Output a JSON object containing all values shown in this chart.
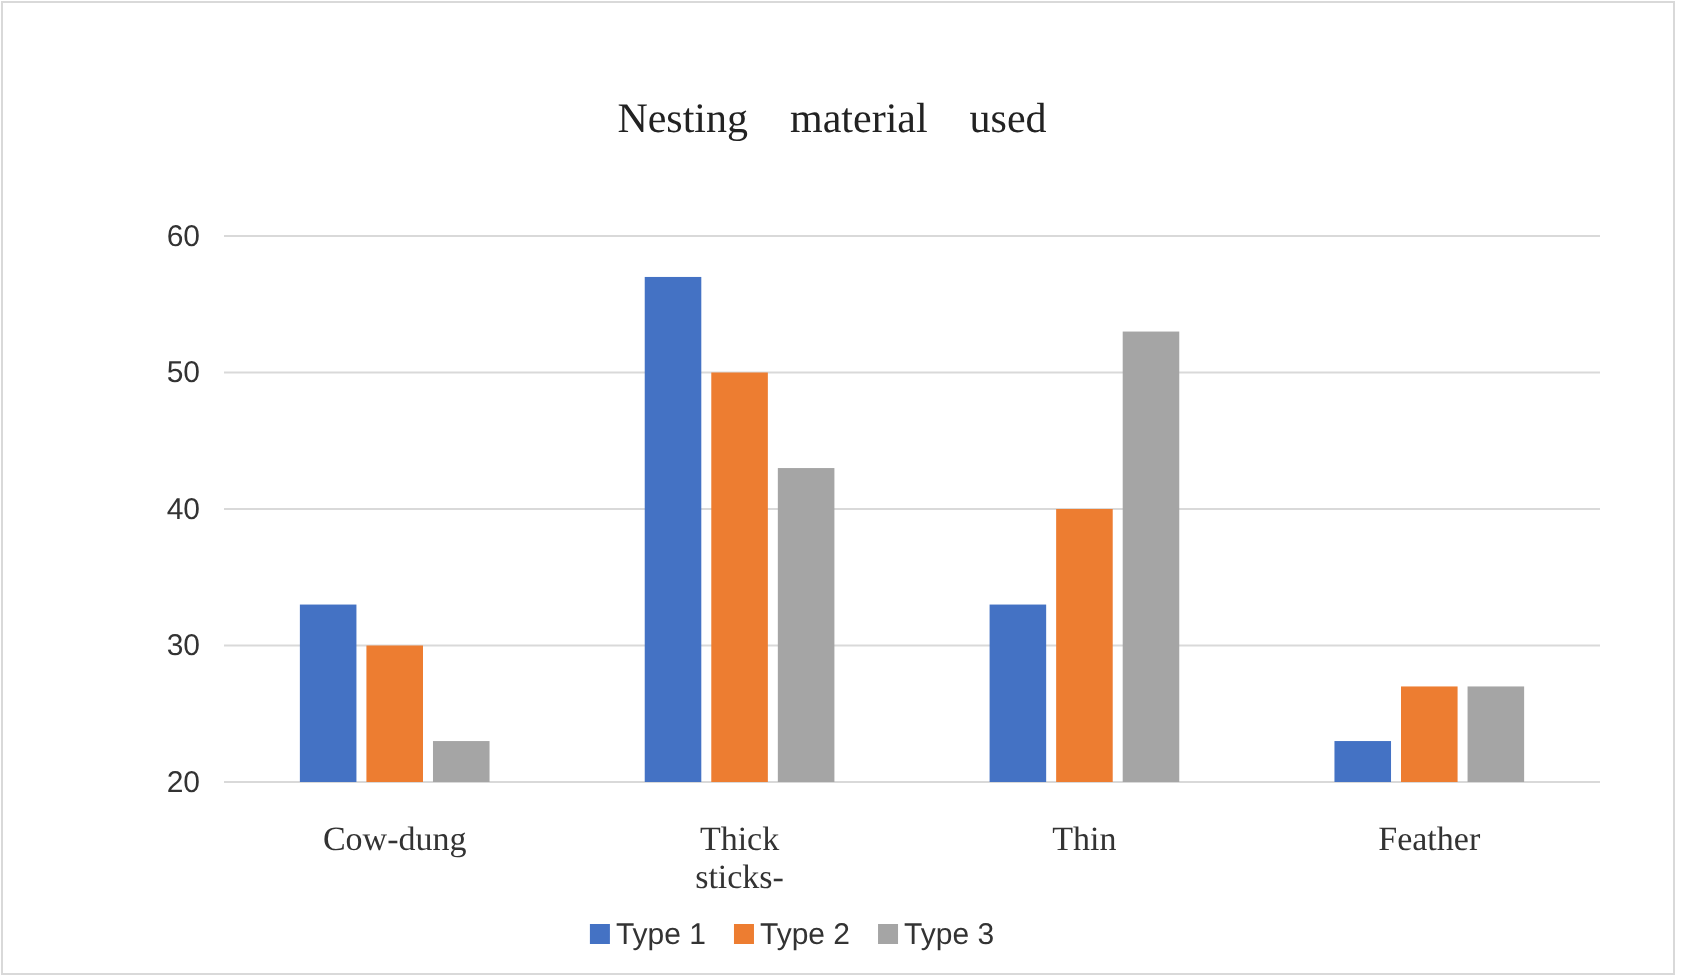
{
  "chart_data": {
    "type": "bar",
    "title": "Nesting    material    used",
    "categories": [
      "Cow-dung",
      "Thick sticks-",
      "Thin",
      "Feather"
    ],
    "series": [
      {
        "name": "Type 1",
        "color": "#4472c4",
        "values": [
          33,
          57,
          33,
          23
        ]
      },
      {
        "name": "Type 2",
        "color": "#ed7d31",
        "values": [
          30,
          50,
          40,
          27
        ]
      },
      {
        "name": "Type 3",
        "color": "#a5a5a5",
        "values": [
          23,
          43,
          53,
          27
        ]
      }
    ],
    "ylim": [
      20,
      60
    ],
    "yticks": [
      20,
      30,
      40,
      50,
      60
    ],
    "grid": "y",
    "legend": "bottom"
  }
}
